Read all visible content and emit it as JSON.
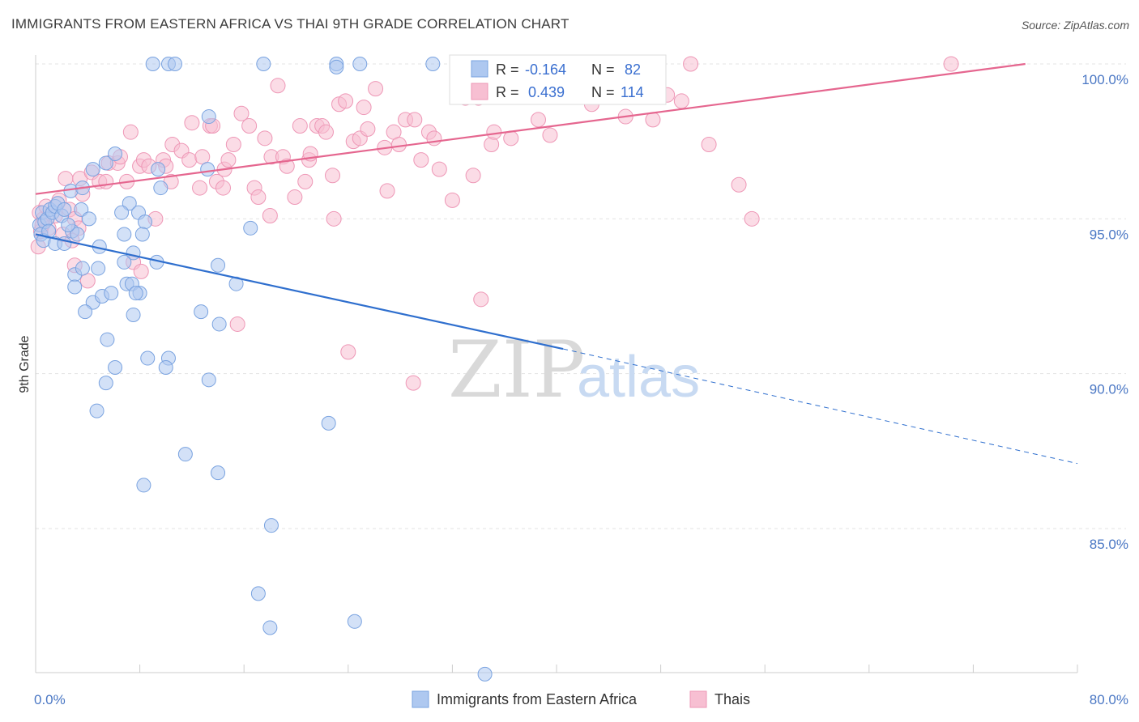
{
  "header": {
    "title": "IMMIGRANTS FROM EASTERN AFRICA VS THAI 9TH GRADE CORRELATION CHART",
    "source": "Source: ZipAtlas.com"
  },
  "watermark": {
    "zip": "ZIP",
    "atlas": "atlas"
  },
  "colors": {
    "blue_fill": "#aec8f0",
    "blue_stroke": "#7aa3e0",
    "blue_line": "#2f6fce",
    "pink_fill": "#f7bfd2",
    "pink_stroke": "#ee97b6",
    "pink_line": "#e5668f",
    "grid": "#e3e3e3",
    "axis_label": "#4a77c4"
  },
  "stats": {
    "row1": {
      "r_key": "R =",
      "r_val": "-0.164",
      "n_key": "N =",
      "n_val": "82"
    },
    "row2": {
      "r_key": "R =",
      "r_val": "0.439",
      "n_key": "N =",
      "n_val": "114"
    }
  },
  "chart_data": {
    "type": "scatter",
    "title": "IMMIGRANTS FROM EASTERN AFRICA VS THAI 9TH GRADE CORRELATION CHART",
    "xlabel": "",
    "ylabel": "9th Grade",
    "xlim": [
      0,
      80
    ],
    "ylim": [
      80.2,
      100.4
    ],
    "x_tick_labels": [
      "0.0%",
      "80.0%"
    ],
    "y_ticks": [
      85,
      90,
      95,
      100
    ],
    "y_tick_labels": [
      "85.0%",
      "90.0%",
      "95.0%",
      "100.0%"
    ],
    "grid": "horizontal dashed",
    "legend": "bottom-center",
    "series": [
      {
        "name": "Immigrants from Eastern Africa",
        "color": "#aec8f0",
        "r": -0.164,
        "n": 82,
        "trend": {
          "x": [
            0,
            40.5
          ],
          "y": [
            94.5,
            90.8
          ],
          "dashed_x": [
            40.5,
            80
          ],
          "dashed_y": [
            90.8,
            87.1
          ]
        },
        "points": [
          [
            0.3,
            94.8
          ],
          [
            0.5,
            95.2
          ],
          [
            0.7,
            94.9
          ],
          [
            0.9,
            95.0
          ],
          [
            1.1,
            95.3
          ],
          [
            1.3,
            95.2
          ],
          [
            1.5,
            95.4
          ],
          [
            1.7,
            95.5
          ],
          [
            2.0,
            95.1
          ],
          [
            2.2,
            95.3
          ],
          [
            0.4,
            94.5
          ],
          [
            0.6,
            94.3
          ],
          [
            1.0,
            94.6
          ],
          [
            1.5,
            94.2
          ],
          [
            2.2,
            94.2
          ],
          [
            2.8,
            94.6
          ],
          [
            3.2,
            94.5
          ],
          [
            3.5,
            95.3
          ],
          [
            4.1,
            95.0
          ],
          [
            2.7,
            95.9
          ],
          [
            3.6,
            96.0
          ],
          [
            4.4,
            96.6
          ],
          [
            5.4,
            96.8
          ],
          [
            6.1,
            97.1
          ],
          [
            7.2,
            95.5
          ],
          [
            6.6,
            95.2
          ],
          [
            7.9,
            95.2
          ],
          [
            8.4,
            94.9
          ],
          [
            6.8,
            94.5
          ],
          [
            8.2,
            94.5
          ],
          [
            4.9,
            94.1
          ],
          [
            7.5,
            93.9
          ],
          [
            9.4,
            96.6
          ],
          [
            9.6,
            96.0
          ],
          [
            13.2,
            96.6
          ],
          [
            13.3,
            98.3
          ],
          [
            16.5,
            94.7
          ],
          [
            3.0,
            93.2
          ],
          [
            3.6,
            93.4
          ],
          [
            4.8,
            93.4
          ],
          [
            6.8,
            93.6
          ],
          [
            7.0,
            92.9
          ],
          [
            7.4,
            92.9
          ],
          [
            8.0,
            92.6
          ],
          [
            9.3,
            93.6
          ],
          [
            3.0,
            92.8
          ],
          [
            4.4,
            92.3
          ],
          [
            5.1,
            92.5
          ],
          [
            5.8,
            92.6
          ],
          [
            7.7,
            92.6
          ],
          [
            3.8,
            92.0
          ],
          [
            7.5,
            91.9
          ],
          [
            12.7,
            92.0
          ],
          [
            14.1,
            91.6
          ],
          [
            15.4,
            92.9
          ],
          [
            14.0,
            93.5
          ],
          [
            5.5,
            91.1
          ],
          [
            8.6,
            90.5
          ],
          [
            10.2,
            90.5
          ],
          [
            6.1,
            90.2
          ],
          [
            10.0,
            90.2
          ],
          [
            5.4,
            89.7
          ],
          [
            13.3,
            89.8
          ],
          [
            4.7,
            88.8
          ],
          [
            22.5,
            88.4
          ],
          [
            11.5,
            87.4
          ],
          [
            14.0,
            86.8
          ],
          [
            8.3,
            86.4
          ],
          [
            18.1,
            85.1
          ],
          [
            17.1,
            82.9
          ],
          [
            18.0,
            81.8
          ],
          [
            24.5,
            82.0
          ],
          [
            34.5,
            80.3
          ],
          [
            9.0,
            100.0
          ],
          [
            10.2,
            100.0
          ],
          [
            10.7,
            100.0
          ],
          [
            17.5,
            100.0
          ],
          [
            23.1,
            100.0
          ],
          [
            24.9,
            100.0
          ],
          [
            23.1,
            99.9
          ],
          [
            30.5,
            100.0
          ],
          [
            2.5,
            94.8
          ]
        ]
      },
      {
        "name": "Thais",
        "color": "#f7bfd2",
        "r": 0.439,
        "n": 114,
        "trend": {
          "x": [
            0,
            76
          ],
          "y": [
            95.8,
            100.0
          ]
        },
        "points": [
          [
            0.2,
            94.1
          ],
          [
            0.4,
            94.6
          ],
          [
            0.6,
            95.0
          ],
          [
            1.0,
            94.7
          ],
          [
            1.5,
            95.1
          ],
          [
            2.1,
            94.5
          ],
          [
            2.6,
            95.3
          ],
          [
            3.0,
            95.0
          ],
          [
            3.3,
            94.7
          ],
          [
            2.3,
            96.3
          ],
          [
            3.4,
            96.3
          ],
          [
            3.6,
            95.8
          ],
          [
            4.3,
            96.5
          ],
          [
            4.9,
            96.2
          ],
          [
            5.4,
            96.2
          ],
          [
            5.6,
            96.8
          ],
          [
            6.3,
            96.8
          ],
          [
            6.5,
            97.0
          ],
          [
            7.0,
            96.2
          ],
          [
            7.3,
            97.8
          ],
          [
            8.0,
            96.7
          ],
          [
            8.3,
            96.9
          ],
          [
            8.7,
            96.7
          ],
          [
            9.2,
            95.0
          ],
          [
            9.8,
            96.9
          ],
          [
            10.0,
            96.7
          ],
          [
            10.4,
            96.2
          ],
          [
            10.5,
            97.4
          ],
          [
            11.2,
            97.2
          ],
          [
            11.8,
            96.9
          ],
          [
            12.0,
            98.1
          ],
          [
            12.6,
            96.0
          ],
          [
            13.4,
            98.0
          ],
          [
            13.6,
            98.0
          ],
          [
            13.9,
            96.2
          ],
          [
            14.5,
            96.6
          ],
          [
            14.8,
            96.9
          ],
          [
            15.2,
            97.4
          ],
          [
            15.8,
            98.4
          ],
          [
            16.4,
            98.0
          ],
          [
            16.8,
            96.0
          ],
          [
            17.1,
            95.7
          ],
          [
            17.6,
            97.6
          ],
          [
            18.1,
            97.0
          ],
          [
            18.0,
            95.1
          ],
          [
            18.6,
            99.3
          ],
          [
            19.0,
            97.0
          ],
          [
            19.3,
            96.7
          ],
          [
            19.9,
            95.7
          ],
          [
            20.3,
            98.0
          ],
          [
            20.7,
            96.2
          ],
          [
            21.0,
            96.9
          ],
          [
            21.1,
            97.1
          ],
          [
            21.6,
            98.0
          ],
          [
            22.0,
            98.0
          ],
          [
            22.3,
            97.8
          ],
          [
            22.8,
            96.4
          ],
          [
            22.9,
            95.0
          ],
          [
            23.3,
            98.7
          ],
          [
            23.8,
            98.8
          ],
          [
            24.4,
            97.5
          ],
          [
            24.9,
            97.6
          ],
          [
            25.2,
            98.6
          ],
          [
            25.5,
            97.9
          ],
          [
            26.1,
            99.2
          ],
          [
            26.8,
            97.3
          ],
          [
            27.0,
            95.9
          ],
          [
            27.5,
            97.8
          ],
          [
            27.9,
            97.4
          ],
          [
            28.4,
            98.2
          ],
          [
            29.1,
            98.2
          ],
          [
            29.6,
            96.9
          ],
          [
            30.2,
            97.8
          ],
          [
            30.6,
            97.6
          ],
          [
            31.0,
            96.6
          ],
          [
            32.0,
            95.6
          ],
          [
            33.0,
            98.9
          ],
          [
            33.1,
            99.9
          ],
          [
            33.6,
            96.4
          ],
          [
            34.0,
            98.9
          ],
          [
            35.0,
            97.4
          ],
          [
            35.2,
            97.8
          ],
          [
            36.5,
            97.6
          ],
          [
            37.2,
            99.4
          ],
          [
            38.6,
            98.2
          ],
          [
            39.5,
            97.7
          ],
          [
            40.5,
            100.0
          ],
          [
            41.4,
            99.4
          ],
          [
            42.7,
            98.7
          ],
          [
            45.3,
            98.3
          ],
          [
            46.0,
            99.7
          ],
          [
            47.4,
            98.2
          ],
          [
            48.5,
            99.0
          ],
          [
            49.6,
            98.8
          ],
          [
            50.3,
            100.0
          ],
          [
            51.7,
            97.4
          ],
          [
            54.0,
            96.1
          ],
          [
            55.0,
            95.0
          ],
          [
            70.3,
            100.0
          ],
          [
            34.2,
            92.4
          ],
          [
            15.5,
            91.6
          ],
          [
            24.0,
            90.7
          ],
          [
            29.0,
            89.7
          ],
          [
            3.0,
            93.5
          ],
          [
            7.5,
            93.6
          ],
          [
            8.1,
            93.3
          ],
          [
            4.0,
            93.0
          ],
          [
            2.8,
            94.3
          ],
          [
            0.3,
            95.2
          ],
          [
            0.8,
            95.4
          ],
          [
            14.4,
            96.0
          ],
          [
            1.8,
            95.6
          ],
          [
            12.8,
            97.0
          ],
          [
            0.5,
            94.8
          ]
        ]
      }
    ]
  },
  "legend": {
    "items": [
      {
        "label": "Immigrants from Eastern Africa"
      },
      {
        "label": "Thais"
      }
    ]
  }
}
